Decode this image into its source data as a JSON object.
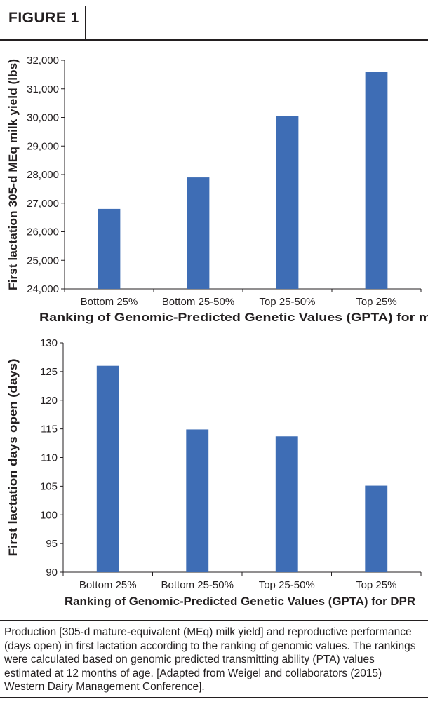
{
  "header": {
    "figure_label": "FIGURE 1"
  },
  "chart_data": [
    {
      "type": "bar",
      "categories": [
        "Bottom 25%",
        "Bottom 25-50%",
        "Top 25-50%",
        "Top 25%"
      ],
      "values": [
        26800,
        27900,
        30050,
        31600
      ],
      "xlabel": "Ranking of Genomic-Predicted Genetic Values (GPTA) for milk",
      "ylabel": "First lactation 305-d MEq milk yield (lbs)",
      "ylim": [
        24000,
        32000
      ],
      "yticks": [
        24000,
        25000,
        26000,
        27000,
        28000,
        29000,
        30000,
        31000,
        32000
      ],
      "ytick_labels": [
        "24,000",
        "25,000",
        "26,000",
        "27,000",
        "28,000",
        "29,000",
        "30,000",
        "31,000",
        "32,000"
      ],
      "bar_color": "#3e6db5",
      "grid": false
    },
    {
      "type": "bar",
      "categories": [
        "Bottom 25%",
        "Bottom 25-50%",
        "Top 25-50%",
        "Top 25%"
      ],
      "values": [
        126,
        114.9,
        113.7,
        105.1
      ],
      "xlabel": "Ranking of Genomic-Predicted Genetic Values (GPTA) for DPR",
      "ylabel": "First lactation days open (days)",
      "ylim": [
        90,
        130
      ],
      "yticks": [
        90,
        95,
        100,
        105,
        110,
        115,
        120,
        125,
        130
      ],
      "ytick_labels": [
        "90",
        "95",
        "100",
        "105",
        "110",
        "115",
        "120",
        "125",
        "130"
      ],
      "bar_color": "#3e6db5",
      "grid": false
    }
  ],
  "caption": "Production [305-d mature-equivalent (MEq) milk yield] and reproductive performance (days open) in first lactation according to the ranking of genomic values. The rankings were calculated based on genomic predicted transmitting ability (PTA) values estimated at 12 months of age. [Adapted from Weigel and collaborators (2015) Western Dairy Management Conference]."
}
